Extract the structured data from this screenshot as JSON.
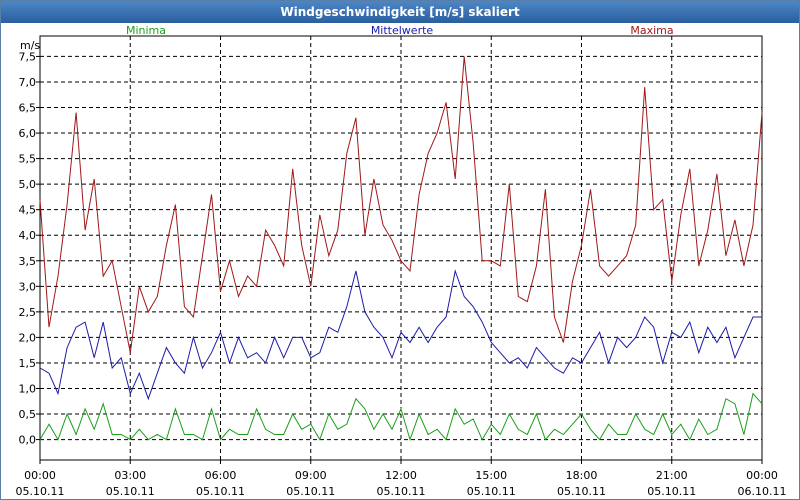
{
  "window": {
    "title": "Windgeschwindigkeit [m/s] skaliert"
  },
  "chart_data": {
    "type": "line",
    "title": "Windgeschwindigkeit [m/s] skaliert",
    "ylabel": "m/s",
    "ylim": [
      -0.4,
      7.9
    ],
    "yticks": [
      "0,0",
      "0,5",
      "1,0",
      "1,5",
      "2,0",
      "2,5",
      "3,0",
      "3,5",
      "4,0",
      "4,5",
      "5,0",
      "5,5",
      "6,0",
      "6,5",
      "7,0",
      "7,5"
    ],
    "ytick_values": [
      0,
      0.5,
      1,
      1.5,
      2,
      2.5,
      3,
      3.5,
      4,
      4.5,
      5,
      5.5,
      6,
      6.5,
      7,
      7.5
    ],
    "xlim": [
      0,
      24
    ],
    "xticks": [
      {
        "time": "00:00",
        "date": "05.10.11",
        "hour": 0
      },
      {
        "time": "03:00",
        "date": "05.10.11",
        "hour": 3
      },
      {
        "time": "06:00",
        "date": "05.10.11",
        "hour": 6
      },
      {
        "time": "09:00",
        "date": "05.10.11",
        "hour": 9
      },
      {
        "time": "12:00",
        "date": "05.10.11",
        "hour": 12
      },
      {
        "time": "15:00",
        "date": "05.10.11",
        "hour": 15
      },
      {
        "time": "18:00",
        "date": "05.10.11",
        "hour": 18
      },
      {
        "time": "21:00",
        "date": "05.10.11",
        "hour": 21
      },
      {
        "time": "00:00",
        "date": "06.10.11",
        "hour": 24
      }
    ],
    "grid": true,
    "legend_placement": "top",
    "series": [
      {
        "name": "Minima",
        "color": "#1aa01a",
        "x": [
          0,
          0.3,
          0.6,
          0.9,
          1.2,
          1.5,
          1.8,
          2.1,
          2.4,
          2.7,
          3.0,
          3.3,
          3.6,
          3.9,
          4.2,
          4.5,
          4.8,
          5.1,
          5.4,
          5.7,
          6.0,
          6.3,
          6.6,
          6.9,
          7.2,
          7.5,
          7.8,
          8.1,
          8.4,
          8.7,
          9.0,
          9.3,
          9.6,
          9.9,
          10.2,
          10.5,
          10.8,
          11.1,
          11.4,
          11.7,
          12.0,
          12.3,
          12.6,
          12.9,
          13.2,
          13.5,
          13.8,
          14.1,
          14.4,
          14.7,
          15.0,
          15.3,
          15.6,
          15.9,
          16.2,
          16.5,
          16.8,
          17.1,
          17.4,
          17.7,
          18.0,
          18.3,
          18.6,
          18.9,
          19.2,
          19.5,
          19.8,
          20.1,
          20.4,
          20.7,
          21.0,
          21.3,
          21.6,
          21.9,
          22.2,
          22.5,
          22.8,
          23.1,
          23.4,
          23.7,
          24.0
        ],
        "y": [
          0.0,
          0.3,
          0.0,
          0.5,
          0.1,
          0.6,
          0.2,
          0.7,
          0.1,
          0.1,
          0.0,
          0.2,
          0.0,
          0.1,
          0.0,
          0.6,
          0.1,
          0.1,
          0.0,
          0.6,
          0.0,
          0.2,
          0.1,
          0.1,
          0.6,
          0.2,
          0.1,
          0.1,
          0.5,
          0.2,
          0.3,
          0.0,
          0.5,
          0.2,
          0.3,
          0.8,
          0.6,
          0.2,
          0.5,
          0.2,
          0.6,
          0.0,
          0.5,
          0.1,
          0.2,
          0.0,
          0.6,
          0.3,
          0.4,
          0.0,
          0.3,
          0.1,
          0.5,
          0.2,
          0.1,
          0.5,
          0.0,
          0.2,
          0.1,
          0.3,
          0.5,
          0.2,
          0.0,
          0.3,
          0.1,
          0.1,
          0.5,
          0.2,
          0.1,
          0.5,
          0.1,
          0.3,
          0.0,
          0.4,
          0.1,
          0.2,
          0.8,
          0.7,
          0.1,
          0.9,
          0.7
        ]
      },
      {
        "name": "Mittelwerte",
        "color": "#1c1ca8",
        "x": [
          0,
          0.3,
          0.6,
          0.9,
          1.2,
          1.5,
          1.8,
          2.1,
          2.4,
          2.7,
          3.0,
          3.3,
          3.6,
          3.9,
          4.2,
          4.5,
          4.8,
          5.1,
          5.4,
          5.7,
          6.0,
          6.3,
          6.6,
          6.9,
          7.2,
          7.5,
          7.8,
          8.1,
          8.4,
          8.7,
          9.0,
          9.3,
          9.6,
          9.9,
          10.2,
          10.5,
          10.8,
          11.1,
          11.4,
          11.7,
          12.0,
          12.3,
          12.6,
          12.9,
          13.2,
          13.5,
          13.8,
          14.1,
          14.4,
          14.7,
          15.0,
          15.3,
          15.6,
          15.9,
          16.2,
          16.5,
          16.8,
          17.1,
          17.4,
          17.7,
          18.0,
          18.3,
          18.6,
          18.9,
          19.2,
          19.5,
          19.8,
          20.1,
          20.4,
          20.7,
          21.0,
          21.3,
          21.6,
          21.9,
          22.2,
          22.5,
          22.8,
          23.1,
          23.4,
          23.7,
          24.0
        ],
        "y": [
          1.4,
          1.3,
          0.9,
          1.8,
          2.2,
          2.3,
          1.6,
          2.3,
          1.4,
          1.6,
          0.9,
          1.3,
          0.8,
          1.3,
          1.8,
          1.5,
          1.3,
          2.0,
          1.4,
          1.7,
          2.1,
          1.5,
          2.0,
          1.6,
          1.7,
          1.5,
          2.0,
          1.6,
          2.0,
          2.0,
          1.6,
          1.7,
          2.2,
          2.1,
          2.6,
          3.3,
          2.5,
          2.2,
          2.0,
          1.6,
          2.1,
          1.9,
          2.2,
          1.9,
          2.2,
          2.4,
          3.3,
          2.8,
          2.6,
          2.3,
          1.9,
          1.7,
          1.5,
          1.6,
          1.4,
          1.8,
          1.6,
          1.4,
          1.3,
          1.6,
          1.5,
          1.8,
          2.1,
          1.5,
          2.0,
          1.8,
          2.0,
          2.4,
          2.2,
          1.5,
          2.1,
          2.0,
          2.3,
          1.7,
          2.2,
          1.9,
          2.2,
          1.6,
          2.0,
          2.4,
          2.4
        ]
      },
      {
        "name": "Maxima",
        "color": "#a01818",
        "x": [
          0,
          0.3,
          0.6,
          0.9,
          1.2,
          1.5,
          1.8,
          2.1,
          2.4,
          2.7,
          3.0,
          3.3,
          3.6,
          3.9,
          4.2,
          4.5,
          4.8,
          5.1,
          5.4,
          5.7,
          6.0,
          6.3,
          6.6,
          6.9,
          7.2,
          7.5,
          7.8,
          8.1,
          8.4,
          8.7,
          9.0,
          9.3,
          9.6,
          9.9,
          10.2,
          10.5,
          10.8,
          11.1,
          11.4,
          11.7,
          12.0,
          12.3,
          12.6,
          12.9,
          13.2,
          13.5,
          13.8,
          14.1,
          14.4,
          14.7,
          15.0,
          15.3,
          15.6,
          15.9,
          16.2,
          16.5,
          16.8,
          17.1,
          17.4,
          17.7,
          18.0,
          18.3,
          18.6,
          18.9,
          19.2,
          19.5,
          19.8,
          20.1,
          20.4,
          20.7,
          21.0,
          21.3,
          21.6,
          21.9,
          22.2,
          22.5,
          22.8,
          23.1,
          23.4,
          23.7,
          24.0
        ],
        "y": [
          4.7,
          2.2,
          3.2,
          4.6,
          6.4,
          4.1,
          5.1,
          3.2,
          3.5,
          2.6,
          1.7,
          3.0,
          2.5,
          2.8,
          3.8,
          4.6,
          2.6,
          2.4,
          3.6,
          4.8,
          2.9,
          3.5,
          2.8,
          3.2,
          3.0,
          4.1,
          3.8,
          3.4,
          5.3,
          3.8,
          3.0,
          4.4,
          3.6,
          4.1,
          5.6,
          6.3,
          4.0,
          5.1,
          4.2,
          3.9,
          3.5,
          3.3,
          4.8,
          5.6,
          6.0,
          6.6,
          5.1,
          7.5,
          5.8,
          3.5,
          3.5,
          3.4,
          5.0,
          2.8,
          2.7,
          3.4,
          4.9,
          2.4,
          1.9,
          3.1,
          3.8,
          4.9,
          3.4,
          3.2,
          3.4,
          3.6,
          4.2,
          6.9,
          4.5,
          4.7,
          3.1,
          4.4,
          5.3,
          3.4,
          4.1,
          5.2,
          3.6,
          4.3,
          3.4,
          4.2,
          6.4
        ]
      }
    ]
  }
}
